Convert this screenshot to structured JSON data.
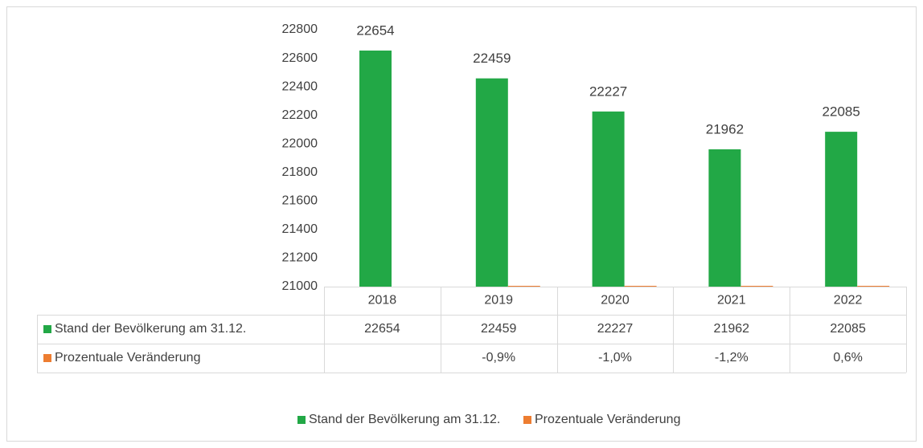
{
  "chart_data": {
    "type": "bar",
    "categories": [
      "2018",
      "2019",
      "2020",
      "2021",
      "2022"
    ],
    "series": [
      {
        "name": "Stand der Bevölkerung am 31.12.",
        "color": "#22a846",
        "values": [
          22654,
          22459,
          22227,
          21962,
          22085
        ]
      },
      {
        "name": "Prozentuale Veränderung",
        "color": "#ed7d31",
        "values": [
          null,
          -0.9,
          -1.0,
          -1.2,
          0.6
        ],
        "value_labels": [
          null,
          "-0,9%",
          "-1,0%",
          "-1,2%",
          "0,6%"
        ]
      }
    ],
    "ylim": [
      21000,
      22800
    ],
    "yticks": [
      21000,
      21200,
      21400,
      21600,
      21800,
      22000,
      22200,
      22400,
      22600,
      22800
    ],
    "data_labels": true,
    "data_table": true,
    "legend": "bottom"
  }
}
